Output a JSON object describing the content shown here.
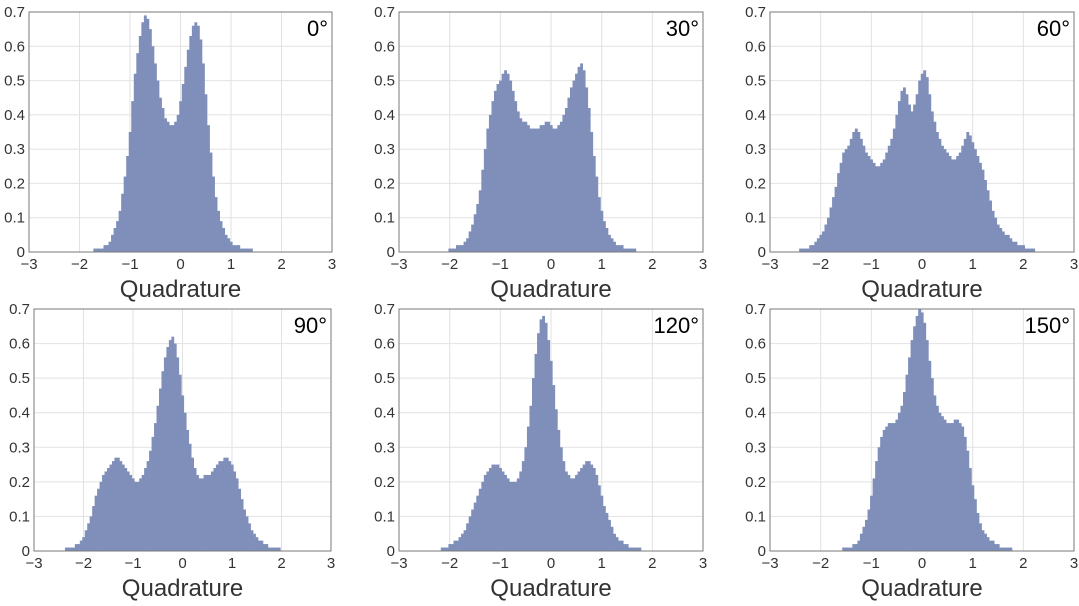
{
  "chart_data": [
    {
      "type": "bar",
      "angle_label": "0°",
      "xlabel": "Quadrature",
      "xlim": [
        -3,
        3
      ],
      "ylim": [
        0,
        0.7
      ],
      "xticks": [
        -3,
        -2,
        -1,
        0,
        1,
        2,
        3
      ],
      "yticks": [
        0,
        0.1,
        0.2,
        0.3,
        0.4,
        0.5,
        0.6,
        0.7
      ],
      "bin_width": 0.05,
      "x": [
        -1.75,
        -1.7,
        -1.65,
        -1.6,
        -1.55,
        -1.5,
        -1.45,
        -1.4,
        -1.35,
        -1.3,
        -1.25,
        -1.2,
        -1.15,
        -1.1,
        -1.05,
        -1.0,
        -0.95,
        -0.9,
        -0.85,
        -0.8,
        -0.75,
        -0.7,
        -0.65,
        -0.6,
        -0.55,
        -0.5,
        -0.45,
        -0.4,
        -0.35,
        -0.3,
        -0.25,
        -0.2,
        -0.15,
        -0.1,
        -0.05,
        0.0,
        0.05,
        0.1,
        0.15,
        0.2,
        0.25,
        0.3,
        0.35,
        0.4,
        0.45,
        0.5,
        0.55,
        0.6,
        0.65,
        0.7,
        0.75,
        0.8,
        0.85,
        0.9,
        0.95,
        1.0,
        1.05,
        1.1,
        1.15,
        1.2,
        1.25,
        1.3,
        1.35,
        1.4,
        1.45,
        1.5,
        1.55,
        1.6
      ],
      "values": [
        0.0,
        0.01,
        0.01,
        0.01,
        0.01,
        0.02,
        0.02,
        0.03,
        0.05,
        0.07,
        0.09,
        0.12,
        0.17,
        0.22,
        0.28,
        0.35,
        0.44,
        0.52,
        0.58,
        0.63,
        0.67,
        0.69,
        0.68,
        0.65,
        0.6,
        0.55,
        0.5,
        0.45,
        0.42,
        0.39,
        0.38,
        0.37,
        0.37,
        0.38,
        0.4,
        0.44,
        0.49,
        0.54,
        0.59,
        0.63,
        0.66,
        0.67,
        0.66,
        0.62,
        0.55,
        0.46,
        0.37,
        0.29,
        0.22,
        0.16,
        0.12,
        0.09,
        0.07,
        0.05,
        0.04,
        0.03,
        0.02,
        0.02,
        0.02,
        0.01,
        0.01,
        0.01,
        0.01,
        0.01,
        0.0,
        0.0,
        0.0,
        0.0
      ],
      "color": "#7f8fba"
    },
    {
      "type": "bar",
      "angle_label": "30°",
      "xlabel": "Quadrature",
      "xlim": [
        -3,
        3
      ],
      "ylim": [
        0,
        0.7
      ],
      "xticks": [
        -3,
        -2,
        -1,
        0,
        1,
        2,
        3
      ],
      "yticks": [
        0,
        0.1,
        0.2,
        0.3,
        0.4,
        0.5,
        0.6,
        0.7
      ],
      "bin_width": 0.05,
      "x": [
        -2.0,
        -1.95,
        -1.9,
        -1.85,
        -1.8,
        -1.75,
        -1.7,
        -1.65,
        -1.6,
        -1.55,
        -1.5,
        -1.45,
        -1.4,
        -1.35,
        -1.3,
        -1.25,
        -1.2,
        -1.15,
        -1.1,
        -1.05,
        -1.0,
        -0.95,
        -0.9,
        -0.85,
        -0.8,
        -0.75,
        -0.7,
        -0.65,
        -0.6,
        -0.55,
        -0.5,
        -0.45,
        -0.4,
        -0.35,
        -0.3,
        -0.25,
        -0.2,
        -0.15,
        -0.1,
        -0.05,
        0.0,
        0.05,
        0.1,
        0.15,
        0.2,
        0.25,
        0.3,
        0.35,
        0.4,
        0.45,
        0.5,
        0.55,
        0.6,
        0.65,
        0.7,
        0.75,
        0.8,
        0.85,
        0.9,
        0.95,
        1.0,
        1.05,
        1.1,
        1.15,
        1.2,
        1.25,
        1.3,
        1.35,
        1.4,
        1.45,
        1.5,
        1.55,
        1.6,
        1.65,
        1.7,
        1.75,
        1.8,
        1.85,
        1.9,
        1.95
      ],
      "values": [
        0.01,
        0.01,
        0.01,
        0.02,
        0.02,
        0.02,
        0.03,
        0.04,
        0.06,
        0.08,
        0.11,
        0.14,
        0.18,
        0.24,
        0.3,
        0.36,
        0.4,
        0.44,
        0.47,
        0.49,
        0.5,
        0.52,
        0.53,
        0.52,
        0.5,
        0.47,
        0.44,
        0.41,
        0.39,
        0.38,
        0.38,
        0.37,
        0.36,
        0.36,
        0.36,
        0.36,
        0.37,
        0.37,
        0.38,
        0.38,
        0.37,
        0.36,
        0.36,
        0.37,
        0.38,
        0.4,
        0.42,
        0.45,
        0.48,
        0.5,
        0.52,
        0.54,
        0.55,
        0.53,
        0.48,
        0.42,
        0.35,
        0.28,
        0.22,
        0.16,
        0.12,
        0.09,
        0.07,
        0.05,
        0.04,
        0.03,
        0.02,
        0.02,
        0.02,
        0.01,
        0.01,
        0.01,
        0.01,
        0.01,
        0.0,
        0.0,
        0.0,
        0.0,
        0.0,
        0.0
      ],
      "color": "#7f8fba"
    },
    {
      "type": "bar",
      "angle_label": "60°",
      "xlabel": "Quadrature",
      "xlim": [
        -3,
        3
      ],
      "ylim": [
        0,
        0.7
      ],
      "xticks": [
        -3,
        -2,
        -1,
        0,
        1,
        2,
        3
      ],
      "yticks": [
        0,
        0.1,
        0.2,
        0.3,
        0.4,
        0.5,
        0.6,
        0.7
      ],
      "bin_width": 0.05,
      "x": [
        -2.5,
        -2.45,
        -2.4,
        -2.35,
        -2.3,
        -2.25,
        -2.2,
        -2.15,
        -2.1,
        -2.05,
        -2.0,
        -1.95,
        -1.9,
        -1.85,
        -1.8,
        -1.75,
        -1.7,
        -1.65,
        -1.6,
        -1.55,
        -1.5,
        -1.45,
        -1.4,
        -1.35,
        -1.3,
        -1.25,
        -1.2,
        -1.15,
        -1.1,
        -1.05,
        -1.0,
        -0.95,
        -0.9,
        -0.85,
        -0.8,
        -0.75,
        -0.7,
        -0.65,
        -0.6,
        -0.55,
        -0.5,
        -0.45,
        -0.4,
        -0.35,
        -0.3,
        -0.25,
        -0.2,
        -0.15,
        -0.1,
        -0.05,
        0.0,
        0.05,
        0.1,
        0.15,
        0.2,
        0.25,
        0.3,
        0.35,
        0.4,
        0.45,
        0.5,
        0.55,
        0.6,
        0.65,
        0.7,
        0.75,
        0.8,
        0.85,
        0.9,
        0.95,
        1.0,
        1.05,
        1.1,
        1.15,
        1.2,
        1.25,
        1.3,
        1.35,
        1.4,
        1.45,
        1.5,
        1.55,
        1.6,
        1.65,
        1.7,
        1.75,
        1.8,
        1.85,
        1.9,
        1.95,
        2.0,
        2.05,
        2.1,
        2.15,
        2.2
      ],
      "values": [
        0.0,
        0.0,
        0.01,
        0.01,
        0.01,
        0.01,
        0.02,
        0.02,
        0.03,
        0.04,
        0.05,
        0.06,
        0.08,
        0.1,
        0.13,
        0.16,
        0.19,
        0.23,
        0.26,
        0.29,
        0.3,
        0.31,
        0.33,
        0.35,
        0.36,
        0.35,
        0.33,
        0.31,
        0.29,
        0.28,
        0.27,
        0.26,
        0.25,
        0.25,
        0.26,
        0.27,
        0.29,
        0.31,
        0.33,
        0.36,
        0.4,
        0.44,
        0.47,
        0.48,
        0.46,
        0.43,
        0.41,
        0.43,
        0.46,
        0.5,
        0.52,
        0.53,
        0.51,
        0.46,
        0.41,
        0.38,
        0.35,
        0.33,
        0.31,
        0.3,
        0.29,
        0.28,
        0.27,
        0.27,
        0.28,
        0.29,
        0.31,
        0.33,
        0.35,
        0.34,
        0.32,
        0.3,
        0.28,
        0.26,
        0.24,
        0.21,
        0.18,
        0.15,
        0.12,
        0.1,
        0.08,
        0.07,
        0.06,
        0.05,
        0.05,
        0.04,
        0.03,
        0.03,
        0.02,
        0.02,
        0.02,
        0.01,
        0.01,
        0.01,
        0.01
      ],
      "color": "#7f8fba"
    },
    {
      "type": "bar",
      "angle_label": "90°",
      "xlabel": "Quadrature",
      "xlim": [
        -3,
        3
      ],
      "ylim": [
        0,
        0.7
      ],
      "xticks": [
        -3,
        -2,
        -1,
        0,
        1,
        2,
        3
      ],
      "yticks": [
        0,
        0.1,
        0.2,
        0.3,
        0.4,
        0.5,
        0.6,
        0.7
      ],
      "bin_width": 0.05,
      "x": [
        -2.4,
        -2.35,
        -2.3,
        -2.25,
        -2.2,
        -2.15,
        -2.1,
        -2.05,
        -2.0,
        -1.95,
        -1.9,
        -1.85,
        -1.8,
        -1.75,
        -1.7,
        -1.65,
        -1.6,
        -1.55,
        -1.5,
        -1.45,
        -1.4,
        -1.35,
        -1.3,
        -1.25,
        -1.2,
        -1.15,
        -1.1,
        -1.05,
        -1.0,
        -0.95,
        -0.9,
        -0.85,
        -0.8,
        -0.75,
        -0.7,
        -0.65,
        -0.6,
        -0.55,
        -0.5,
        -0.45,
        -0.4,
        -0.35,
        -0.3,
        -0.25,
        -0.2,
        -0.15,
        -0.1,
        -0.05,
        0.0,
        0.05,
        0.1,
        0.15,
        0.2,
        0.25,
        0.3,
        0.35,
        0.4,
        0.45,
        0.5,
        0.55,
        0.6,
        0.65,
        0.7,
        0.75,
        0.8,
        0.85,
        0.9,
        0.95,
        1.0,
        1.05,
        1.1,
        1.15,
        1.2,
        1.25,
        1.3,
        1.35,
        1.4,
        1.45,
        1.5,
        1.55,
        1.6,
        1.65,
        1.7,
        1.75,
        1.8,
        1.85,
        1.9,
        1.95,
        2.0,
        2.05,
        2.1,
        2.15,
        2.2
      ],
      "values": [
        0.0,
        0.01,
        0.01,
        0.01,
        0.01,
        0.02,
        0.02,
        0.03,
        0.04,
        0.06,
        0.08,
        0.1,
        0.13,
        0.16,
        0.18,
        0.2,
        0.22,
        0.23,
        0.24,
        0.25,
        0.26,
        0.27,
        0.27,
        0.26,
        0.25,
        0.24,
        0.23,
        0.22,
        0.21,
        0.2,
        0.2,
        0.21,
        0.22,
        0.24,
        0.26,
        0.29,
        0.33,
        0.37,
        0.42,
        0.47,
        0.52,
        0.56,
        0.59,
        0.61,
        0.62,
        0.6,
        0.56,
        0.51,
        0.45,
        0.4,
        0.35,
        0.31,
        0.27,
        0.24,
        0.22,
        0.21,
        0.21,
        0.22,
        0.22,
        0.22,
        0.23,
        0.24,
        0.25,
        0.26,
        0.26,
        0.27,
        0.27,
        0.26,
        0.25,
        0.23,
        0.21,
        0.18,
        0.15,
        0.12,
        0.1,
        0.08,
        0.06,
        0.05,
        0.04,
        0.03,
        0.03,
        0.02,
        0.02,
        0.01,
        0.01,
        0.01,
        0.01,
        0.01,
        0.0,
        0.0,
        0.0,
        0.0,
        0.0
      ],
      "color": "#7f8fba"
    },
    {
      "type": "bar",
      "angle_label": "120°",
      "xlabel": "Quadrature",
      "xlim": [
        -3,
        3
      ],
      "ylim": [
        0,
        0.7
      ],
      "xticks": [
        -3,
        -2,
        -1,
        0,
        1,
        2,
        3
      ],
      "yticks": [
        0,
        0.1,
        0.2,
        0.3,
        0.4,
        0.5,
        0.6,
        0.7
      ],
      "bin_width": 0.05,
      "x": [
        -2.2,
        -2.15,
        -2.1,
        -2.05,
        -2.0,
        -1.95,
        -1.9,
        -1.85,
        -1.8,
        -1.75,
        -1.7,
        -1.65,
        -1.6,
        -1.55,
        -1.5,
        -1.45,
        -1.4,
        -1.35,
        -1.3,
        -1.25,
        -1.2,
        -1.15,
        -1.1,
        -1.05,
        -1.0,
        -0.95,
        -0.9,
        -0.85,
        -0.8,
        -0.75,
        -0.7,
        -0.65,
        -0.6,
        -0.55,
        -0.5,
        -0.45,
        -0.4,
        -0.35,
        -0.3,
        -0.25,
        -0.2,
        -0.15,
        -0.1,
        -0.05,
        0.0,
        0.05,
        0.1,
        0.15,
        0.2,
        0.25,
        0.3,
        0.35,
        0.4,
        0.45,
        0.5,
        0.55,
        0.6,
        0.65,
        0.7,
        0.75,
        0.8,
        0.85,
        0.9,
        0.95,
        1.0,
        1.05,
        1.1,
        1.15,
        1.2,
        1.25,
        1.3,
        1.35,
        1.4,
        1.45,
        1.5,
        1.55,
        1.6,
        1.65,
        1.7,
        1.75,
        1.8,
        1.85,
        1.9,
        1.95,
        2.0,
        2.05,
        2.1,
        2.15
      ],
      "values": [
        0.0,
        0.01,
        0.01,
        0.01,
        0.02,
        0.02,
        0.03,
        0.03,
        0.04,
        0.05,
        0.06,
        0.08,
        0.1,
        0.12,
        0.14,
        0.16,
        0.18,
        0.2,
        0.22,
        0.23,
        0.24,
        0.25,
        0.25,
        0.25,
        0.24,
        0.23,
        0.22,
        0.21,
        0.2,
        0.2,
        0.2,
        0.21,
        0.23,
        0.26,
        0.3,
        0.36,
        0.42,
        0.5,
        0.57,
        0.63,
        0.67,
        0.68,
        0.66,
        0.61,
        0.55,
        0.48,
        0.41,
        0.35,
        0.3,
        0.26,
        0.23,
        0.22,
        0.21,
        0.21,
        0.22,
        0.23,
        0.24,
        0.25,
        0.26,
        0.26,
        0.25,
        0.24,
        0.22,
        0.19,
        0.16,
        0.13,
        0.11,
        0.09,
        0.07,
        0.05,
        0.04,
        0.03,
        0.03,
        0.02,
        0.02,
        0.01,
        0.01,
        0.01,
        0.01,
        0.01,
        0.0,
        0.0,
        0.0,
        0.0,
        0.0,
        0.0,
        0.0,
        0.0
      ],
      "color": "#7f8fba"
    },
    {
      "type": "bar",
      "angle_label": "150°",
      "xlabel": "Quadrature",
      "xlim": [
        -3,
        3
      ],
      "ylim": [
        0,
        0.7
      ],
      "xticks": [
        -3,
        -2,
        -1,
        0,
        1,
        2,
        3
      ],
      "yticks": [
        0,
        0.1,
        0.2,
        0.3,
        0.4,
        0.5,
        0.6,
        0.7
      ],
      "bin_width": 0.05,
      "x": [
        -1.6,
        -1.55,
        -1.5,
        -1.45,
        -1.4,
        -1.35,
        -1.3,
        -1.25,
        -1.2,
        -1.15,
        -1.1,
        -1.05,
        -1.0,
        -0.95,
        -0.9,
        -0.85,
        -0.8,
        -0.75,
        -0.7,
        -0.65,
        -0.6,
        -0.55,
        -0.5,
        -0.45,
        -0.4,
        -0.35,
        -0.3,
        -0.25,
        -0.2,
        -0.15,
        -0.1,
        -0.05,
        0.0,
        0.05,
        0.1,
        0.15,
        0.2,
        0.25,
        0.3,
        0.35,
        0.4,
        0.45,
        0.5,
        0.55,
        0.6,
        0.65,
        0.7,
        0.75,
        0.8,
        0.85,
        0.9,
        0.95,
        1.0,
        1.05,
        1.1,
        1.15,
        1.2,
        1.25,
        1.3,
        1.35,
        1.4,
        1.45,
        1.5,
        1.55,
        1.6,
        1.65,
        1.7,
        1.75,
        1.8,
        1.85,
        1.9,
        1.95,
        2.0
      ],
      "values": [
        0.0,
        0.01,
        0.01,
        0.01,
        0.01,
        0.02,
        0.02,
        0.03,
        0.05,
        0.07,
        0.09,
        0.12,
        0.16,
        0.21,
        0.26,
        0.3,
        0.33,
        0.35,
        0.36,
        0.37,
        0.37,
        0.37,
        0.38,
        0.4,
        0.42,
        0.46,
        0.51,
        0.56,
        0.61,
        0.65,
        0.68,
        0.7,
        0.69,
        0.66,
        0.61,
        0.55,
        0.5,
        0.45,
        0.42,
        0.4,
        0.39,
        0.38,
        0.37,
        0.37,
        0.37,
        0.38,
        0.38,
        0.37,
        0.36,
        0.33,
        0.29,
        0.24,
        0.19,
        0.15,
        0.11,
        0.08,
        0.06,
        0.05,
        0.04,
        0.03,
        0.03,
        0.02,
        0.02,
        0.01,
        0.01,
        0.01,
        0.01,
        0.01,
        0.0,
        0.0,
        0.0,
        0.0,
        0.0
      ],
      "color": "#7f8fba"
    }
  ]
}
